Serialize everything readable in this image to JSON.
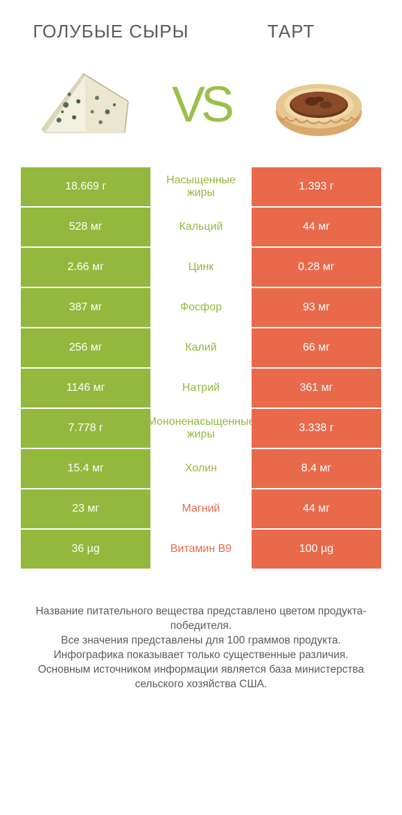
{
  "header": {
    "left_title": "ГОЛУБЫЕ СЫРЫ",
    "right_title": "ТАРТ",
    "vs_text": "VS"
  },
  "colors": {
    "green": "#94b83d",
    "orange": "#e96a4b",
    "text_gray": "#5b5b5b",
    "white": "#ffffff"
  },
  "table": {
    "left_bg": "#94b83d",
    "right_bg": "#e96a4b",
    "rows": [
      {
        "left": "18.669 г",
        "label": "Насыщенные жиры",
        "right": "1.393 г",
        "winner": "left"
      },
      {
        "left": "528 мг",
        "label": "Кальций",
        "right": "44 мг",
        "winner": "left"
      },
      {
        "left": "2.66 мг",
        "label": "Цинк",
        "right": "0.28 мг",
        "winner": "left"
      },
      {
        "left": "387 мг",
        "label": "Фосфор",
        "right": "93 мг",
        "winner": "left"
      },
      {
        "left": "256 мг",
        "label": "Калий",
        "right": "66 мг",
        "winner": "left"
      },
      {
        "left": "1146 мг",
        "label": "Натрий",
        "right": "361 мг",
        "winner": "left"
      },
      {
        "left": "7.778 г",
        "label": "Мононенасыщенные жиры",
        "right": "3.338 г",
        "winner": "left"
      },
      {
        "left": "15.4 мг",
        "label": "Холин",
        "right": "8.4 мг",
        "winner": "left"
      },
      {
        "left": "23 мг",
        "label": "Магний",
        "right": "44 мг",
        "winner": "right"
      },
      {
        "left": "36 µg",
        "label": "Витамин B9",
        "right": "100 µg",
        "winner": "right"
      }
    ]
  },
  "footer": {
    "line1": "Название питательного вещества представлено цветом продукта-победителя.",
    "line2": "Все значения представлены для 100 граммов продукта.",
    "line3": "Инфографика показывает только существенные различия.",
    "line4": "Основным источником информации является база министерства сельского хозяйства США."
  },
  "typography": {
    "title_fontsize": 26,
    "cell_fontsize": 16,
    "footer_fontsize": 15.5,
    "vs_fontsize": 72
  }
}
